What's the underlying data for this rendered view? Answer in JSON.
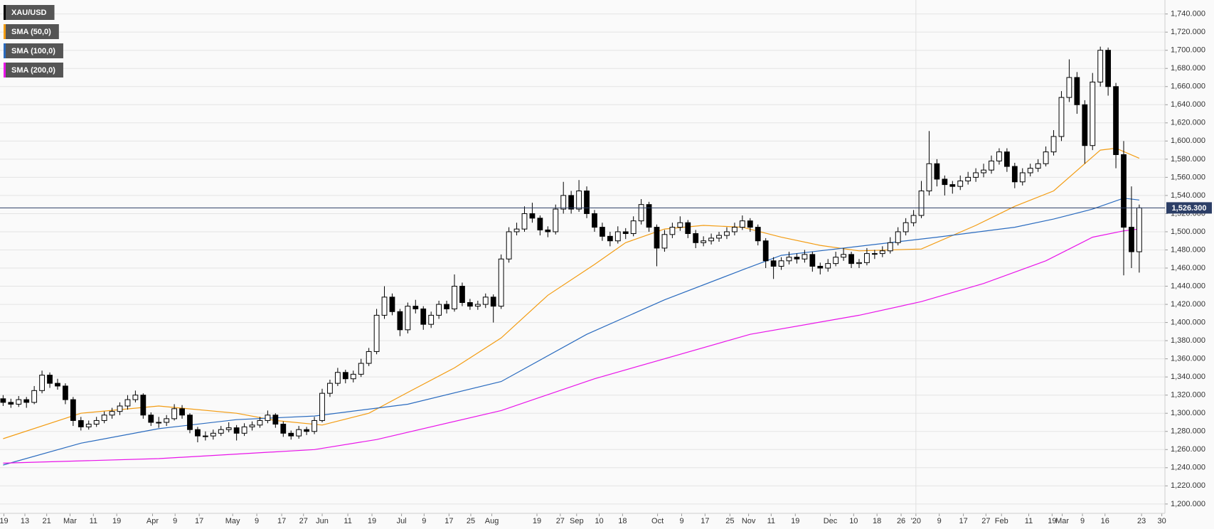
{
  "chart_data": {
    "type": "candlestick",
    "candles": {
      "name": "XAU/USD",
      "color": "#000000",
      "up_color": "#ffffff",
      "ohlc": [
        [
          1316,
          1320,
          1308,
          1312
        ],
        [
          1312,
          1316,
          1306,
          1310
        ],
        [
          1310,
          1319,
          1307,
          1315
        ],
        [
          1315,
          1318,
          1306,
          1312
        ],
        [
          1312,
          1330,
          1310,
          1325
        ],
        [
          1325,
          1347,
          1322,
          1342
        ],
        [
          1342,
          1345,
          1328,
          1333
        ],
        [
          1333,
          1338,
          1326,
          1330
        ],
        [
          1330,
          1333,
          1310,
          1315
        ],
        [
          1315,
          1318,
          1286,
          1292
        ],
        [
          1292,
          1296,
          1281,
          1285
        ],
        [
          1285,
          1292,
          1282,
          1288
        ],
        [
          1288,
          1296,
          1285,
          1292
        ],
        [
          1292,
          1302,
          1289,
          1298
        ],
        [
          1298,
          1306,
          1294,
          1302
        ],
        [
          1302,
          1312,
          1298,
          1308
        ],
        [
          1308,
          1320,
          1304,
          1315
        ],
        [
          1315,
          1325,
          1312,
          1320
        ],
        [
          1320,
          1322,
          1294,
          1298
        ],
        [
          1298,
          1301,
          1286,
          1290
        ],
        [
          1290,
          1296,
          1284,
          1290
        ],
        [
          1290,
          1298,
          1286,
          1294
        ],
        [
          1294,
          1310,
          1292,
          1305
        ],
        [
          1305,
          1309,
          1294,
          1298
        ],
        [
          1298,
          1300,
          1278,
          1282
        ],
        [
          1282,
          1285,
          1268,
          1275
        ],
        [
          1275,
          1280,
          1270,
          1275
        ],
        [
          1275,
          1282,
          1271,
          1278
        ],
        [
          1278,
          1286,
          1275,
          1282
        ],
        [
          1282,
          1290,
          1279,
          1284
        ],
        [
          1284,
          1287,
          1270,
          1278
        ],
        [
          1278,
          1289,
          1275,
          1285
        ],
        [
          1285,
          1291,
          1281,
          1287
        ],
        [
          1287,
          1296,
          1284,
          1292
        ],
        [
          1292,
          1303,
          1289,
          1298
        ],
        [
          1298,
          1300,
          1284,
          1288
        ],
        [
          1288,
          1291,
          1274,
          1278
        ],
        [
          1278,
          1281,
          1271,
          1275
        ],
        [
          1275,
          1286,
          1272,
          1282
        ],
        [
          1282,
          1285,
          1276,
          1280
        ],
        [
          1280,
          1296,
          1277,
          1292
        ],
        [
          1292,
          1327,
          1290,
          1322
        ],
        [
          1322,
          1337,
          1318,
          1333
        ],
        [
          1333,
          1350,
          1330,
          1345
        ],
        [
          1345,
          1348,
          1333,
          1338
        ],
        [
          1338,
          1347,
          1334,
          1343
        ],
        [
          1343,
          1360,
          1340,
          1355
        ],
        [
          1355,
          1372,
          1352,
          1368
        ],
        [
          1368,
          1415,
          1365,
          1408
        ],
        [
          1408,
          1440,
          1404,
          1428
        ],
        [
          1428,
          1432,
          1408,
          1412
        ],
        [
          1412,
          1415,
          1385,
          1392
        ],
        [
          1392,
          1422,
          1388,
          1418
        ],
        [
          1418,
          1425,
          1410,
          1415
        ],
        [
          1415,
          1418,
          1392,
          1398
        ],
        [
          1398,
          1412,
          1394,
          1408
        ],
        [
          1408,
          1424,
          1404,
          1420
        ],
        [
          1420,
          1424,
          1410,
          1415
        ],
        [
          1415,
          1453,
          1412,
          1440
        ],
        [
          1440,
          1444,
          1418,
          1422
        ],
        [
          1422,
          1426,
          1414,
          1418
        ],
        [
          1418,
          1424,
          1414,
          1420
        ],
        [
          1420,
          1432,
          1416,
          1428
        ],
        [
          1428,
          1431,
          1400,
          1418
        ],
        [
          1418,
          1475,
          1415,
          1470
        ],
        [
          1470,
          1505,
          1466,
          1500
        ],
        [
          1500,
          1510,
          1496,
          1503
        ],
        [
          1503,
          1528,
          1500,
          1520
        ],
        [
          1520,
          1532,
          1510,
          1515
        ],
        [
          1515,
          1518,
          1496,
          1502
        ],
        [
          1502,
          1506,
          1494,
          1500
        ],
        [
          1500,
          1530,
          1497,
          1525
        ],
        [
          1525,
          1555,
          1520,
          1540
        ],
        [
          1540,
          1545,
          1520,
          1525
        ],
        [
          1525,
          1557,
          1522,
          1545
        ],
        [
          1545,
          1550,
          1515,
          1520
        ],
        [
          1520,
          1524,
          1500,
          1505
        ],
        [
          1505,
          1510,
          1490,
          1495
        ],
        [
          1495,
          1500,
          1484,
          1490
        ],
        [
          1490,
          1506,
          1487,
          1500
        ],
        [
          1500,
          1504,
          1492,
          1498
        ],
        [
          1498,
          1517,
          1495,
          1512
        ],
        [
          1512,
          1536,
          1508,
          1530
        ],
        [
          1530,
          1533,
          1500,
          1505
        ],
        [
          1505,
          1508,
          1462,
          1482
        ],
        [
          1482,
          1502,
          1478,
          1497
        ],
        [
          1497,
          1510,
          1493,
          1505
        ],
        [
          1505,
          1517,
          1501,
          1510
        ],
        [
          1510,
          1513,
          1493,
          1498
        ],
        [
          1498,
          1502,
          1482,
          1488
        ],
        [
          1488,
          1495,
          1484,
          1490
        ],
        [
          1490,
          1498,
          1486,
          1493
        ],
        [
          1493,
          1500,
          1489,
          1496
        ],
        [
          1496,
          1505,
          1492,
          1500
        ],
        [
          1500,
          1510,
          1496,
          1505
        ],
        [
          1505,
          1518,
          1502,
          1512
        ],
        [
          1512,
          1515,
          1500,
          1505
        ],
        [
          1505,
          1508,
          1485,
          1490
        ],
        [
          1490,
          1493,
          1460,
          1468
        ],
        [
          1468,
          1472,
          1448,
          1462
        ],
        [
          1462,
          1472,
          1458,
          1468
        ],
        [
          1468,
          1478,
          1464,
          1472
        ],
        [
          1472,
          1476,
          1465,
          1470
        ],
        [
          1470,
          1480,
          1466,
          1475
        ],
        [
          1475,
          1478,
          1456,
          1462
        ],
        [
          1462,
          1466,
          1453,
          1460
        ],
        [
          1460,
          1470,
          1456,
          1465
        ],
        [
          1465,
          1478,
          1462,
          1472
        ],
        [
          1472,
          1482,
          1468,
          1475
        ],
        [
          1475,
          1478,
          1460,
          1465
        ],
        [
          1465,
          1470,
          1460,
          1466
        ],
        [
          1466,
          1482,
          1463,
          1476
        ],
        [
          1476,
          1480,
          1470,
          1476
        ],
        [
          1476,
          1484,
          1472,
          1479
        ],
        [
          1479,
          1494,
          1476,
          1488
        ],
        [
          1488,
          1505,
          1485,
          1500
        ],
        [
          1500,
          1515,
          1496,
          1510
        ],
        [
          1510,
          1524,
          1506,
          1518
        ],
        [
          1518,
          1556,
          1515,
          1545
        ],
        [
          1545,
          1611,
          1540,
          1575
        ],
        [
          1575,
          1580,
          1550,
          1558
        ],
        [
          1558,
          1562,
          1540,
          1552
        ],
        [
          1552,
          1556,
          1542,
          1550
        ],
        [
          1550,
          1562,
          1546,
          1556
        ],
        [
          1556,
          1566,
          1552,
          1560
        ],
        [
          1560,
          1570,
          1555,
          1565
        ],
        [
          1565,
          1575,
          1560,
          1568
        ],
        [
          1568,
          1584,
          1564,
          1578
        ],
        [
          1578,
          1592,
          1574,
          1588
        ],
        [
          1588,
          1592,
          1566,
          1572
        ],
        [
          1572,
          1576,
          1548,
          1555
        ],
        [
          1555,
          1570,
          1551,
          1565
        ],
        [
          1565,
          1575,
          1561,
          1570
        ],
        [
          1570,
          1580,
          1566,
          1575
        ],
        [
          1575,
          1594,
          1572,
          1588
        ],
        [
          1588,
          1612,
          1584,
          1605
        ],
        [
          1605,
          1655,
          1600,
          1648
        ],
        [
          1648,
          1690,
          1643,
          1670
        ],
        [
          1670,
          1676,
          1630,
          1640
        ],
        [
          1640,
          1645,
          1575,
          1595
        ],
        [
          1595,
          1675,
          1590,
          1665
        ],
        [
          1665,
          1704,
          1660,
          1700
        ],
        [
          1700,
          1703,
          1650,
          1660
        ],
        [
          1660,
          1664,
          1570,
          1585
        ],
        [
          1585,
          1600,
          1452,
          1505
        ],
        [
          1505,
          1550,
          1460,
          1478
        ],
        [
          1478,
          1530,
          1455,
          1526.3
        ]
      ]
    },
    "series": [
      {
        "name": "SMA (50,0)",
        "color": "#f39c12",
        "x": [
          0,
          10,
          20,
          30,
          35,
          41,
          47,
          52,
          58,
          64,
          70,
          76,
          80,
          85,
          90,
          95,
          100,
          105,
          110,
          118,
          125,
          130,
          135,
          139,
          141,
          143,
          146
        ],
        "values": [
          1272,
          1300,
          1308,
          1300,
          1292,
          1287,
          1300,
          1323,
          1350,
          1383,
          1430,
          1464,
          1488,
          1503,
          1507,
          1505,
          1494,
          1485,
          1479,
          1481,
          1507,
          1528,
          1545,
          1575,
          1590,
          1592,
          1581
        ]
      },
      {
        "name": "SMA (100,0)",
        "color": "#2a6bbf",
        "x": [
          0,
          10,
          20,
          30,
          40,
          52,
          64,
          75,
          85,
          95,
          100,
          110,
          120,
          130,
          135,
          140,
          144,
          146
        ],
        "values": [
          1243,
          1267,
          1283,
          1293,
          1297,
          1310,
          1335,
          1387,
          1425,
          1458,
          1474,
          1484,
          1494,
          1505,
          1514,
          1525,
          1537,
          1535
        ]
      },
      {
        "name": "SMA (200,0)",
        "color": "#e913e9",
        "x": [
          0,
          20,
          40,
          48,
          64,
          76,
          96,
          110,
          118,
          126,
          134,
          140,
          144,
          146
        ],
        "values": [
          1245,
          1250,
          1260,
          1271,
          1303,
          1338,
          1387,
          1408,
          1423,
          1443,
          1468,
          1494,
          1501,
          1503
        ]
      }
    ],
    "last_price": {
      "value": 1526.3,
      "label": "1,526.300"
    },
    "xlim": [
      -0.4,
      149.3
    ],
    "ylim": [
      1189.7,
      1755.4
    ],
    "grid": true,
    "legend": "top-left",
    "xticks": [
      {
        "value": 0.1,
        "label": "19"
      },
      {
        "value": 2.8,
        "label": "13"
      },
      {
        "value": 5.6,
        "label": "21"
      },
      {
        "value": 8.6,
        "label": "Mar"
      },
      {
        "value": 11.6,
        "label": "11"
      },
      {
        "value": 14.6,
        "label": "19"
      },
      {
        "value": 19.2,
        "label": "Apr"
      },
      {
        "value": 22.1,
        "label": "9"
      },
      {
        "value": 25.2,
        "label": "17"
      },
      {
        "value": 29.5,
        "label": "May"
      },
      {
        "value": 32.6,
        "label": "9"
      },
      {
        "value": 35.8,
        "label": "17"
      },
      {
        "value": 38.6,
        "label": "27"
      },
      {
        "value": 41,
        "label": "Jun"
      },
      {
        "value": 44.3,
        "label": "11"
      },
      {
        "value": 47.4,
        "label": "19"
      },
      {
        "value": 51.2,
        "label": "Jul"
      },
      {
        "value": 54.1,
        "label": "9"
      },
      {
        "value": 57.3,
        "label": "17"
      },
      {
        "value": 60.1,
        "label": "25"
      },
      {
        "value": 62.8,
        "label": "Aug"
      },
      {
        "value": 68.6,
        "label": "19"
      },
      {
        "value": 71.6,
        "label": "27"
      },
      {
        "value": 73.7,
        "label": "Sep"
      },
      {
        "value": 76.6,
        "label": "10"
      },
      {
        "value": 79.6,
        "label": "18"
      },
      {
        "value": 84.1,
        "label": "Oct"
      },
      {
        "value": 87.2,
        "label": "9"
      },
      {
        "value": 90.2,
        "label": "17"
      },
      {
        "value": 93.4,
        "label": "25"
      },
      {
        "value": 95.8,
        "label": "Nov"
      },
      {
        "value": 98.7,
        "label": "11"
      },
      {
        "value": 101.8,
        "label": "19"
      },
      {
        "value": 106.3,
        "label": "Dec"
      },
      {
        "value": 109.3,
        "label": "10"
      },
      {
        "value": 112.3,
        "label": "18"
      },
      {
        "value": 115.4,
        "label": "26"
      },
      {
        "value": 117.3,
        "label": "'20"
      },
      {
        "value": 120.3,
        "label": "9"
      },
      {
        "value": 123.4,
        "label": "17"
      },
      {
        "value": 126.3,
        "label": "27"
      },
      {
        "value": 128.3,
        "label": "Feb"
      },
      {
        "value": 131.8,
        "label": "11"
      },
      {
        "value": 134.8,
        "label": "19"
      },
      {
        "value": 136.1,
        "label": "Mar"
      },
      {
        "value": 138.7,
        "label": "9"
      },
      {
        "value": 141.6,
        "label": "16"
      },
      {
        "value": 146.3,
        "label": "23"
      },
      {
        "value": 148.9,
        "label": "30"
      }
    ],
    "yticks": [
      {
        "value": 1200,
        "label": "1,200.000"
      },
      {
        "value": 1220,
        "label": "1,220.000"
      },
      {
        "value": 1240,
        "label": "1,240.000"
      },
      {
        "value": 1260,
        "label": "1,260.000"
      },
      {
        "value": 1280,
        "label": "1,280.000"
      },
      {
        "value": 1300,
        "label": "1,300.000"
      },
      {
        "value": 1320,
        "label": "1,320.000"
      },
      {
        "value": 1340,
        "label": "1,340.000"
      },
      {
        "value": 1360,
        "label": "1,360.000"
      },
      {
        "value": 1380,
        "label": "1,380.000"
      },
      {
        "value": 1400,
        "label": "1,400.000"
      },
      {
        "value": 1420,
        "label": "1,420.000"
      },
      {
        "value": 1440,
        "label": "1,440.000"
      },
      {
        "value": 1460,
        "label": "1,460.000"
      },
      {
        "value": 1480,
        "label": "1,480.000"
      },
      {
        "value": 1500,
        "label": "1,500.000"
      },
      {
        "value": 1520,
        "label": "1,520.000"
      },
      {
        "value": 1540,
        "label": "1,540.000"
      },
      {
        "value": 1560,
        "label": "1,560.000"
      },
      {
        "value": 1580,
        "label": "1,580.000"
      },
      {
        "value": 1600,
        "label": "1,600.000"
      },
      {
        "value": 1620,
        "label": "1,620.000"
      },
      {
        "value": 1640,
        "label": "1,640.000"
      },
      {
        "value": 1660,
        "label": "1,660.000"
      },
      {
        "value": 1680,
        "label": "1,680.000"
      },
      {
        "value": 1700,
        "label": "1,700.000"
      },
      {
        "value": 1720,
        "label": "1,720.000"
      },
      {
        "value": 1740,
        "label": "1,740.000"
      }
    ]
  }
}
